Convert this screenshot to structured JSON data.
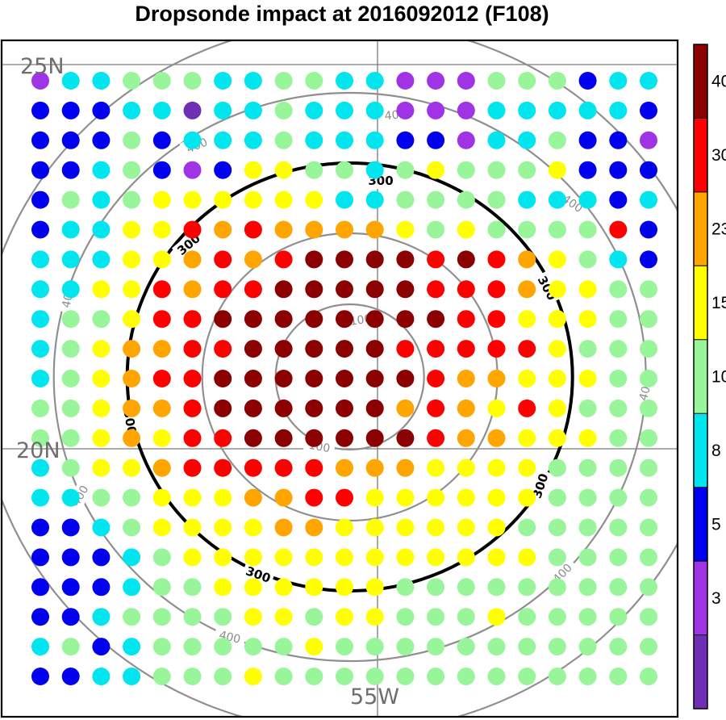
{
  "chart_data": {
    "type": "scatter",
    "title": "Dropsonde impact at 2016092012 (F108)",
    "lat_labels": [
      "25N",
      "20N"
    ],
    "lon_labels": [
      "55W"
    ],
    "range_rings": [
      {
        "label": "100",
        "style": "gray"
      },
      {
        "label": "200",
        "style": "gray"
      },
      {
        "label": "300",
        "style": "black"
      },
      {
        "label": "400",
        "style": "gray"
      }
    ],
    "ring_label_text": {
      "gray100": "100",
      "black300": "300",
      "gray400": "400"
    },
    "colorbar": {
      "ticks": [
        "3",
        "5",
        "8",
        "10",
        "15",
        "23",
        "30",
        "40"
      ],
      "bins": [
        {
          "color": "#6e2fb5"
        },
        {
          "color": "#a033e5"
        },
        {
          "color": "#0000ee"
        },
        {
          "color": "#00e5ee"
        },
        {
          "color": "#99f599"
        },
        {
          "color": "#ffff00"
        },
        {
          "color": "#ffa500"
        },
        {
          "color": "#ff0000"
        },
        {
          "color": "#8b0000"
        }
      ]
    },
    "grid": {
      "rows": 21,
      "cols": 21,
      "levels": [
        "133444334433111444233",
        "222330334333111333332",
        "222423334333221334221",
        "223421255443454445222",
        "243455555533444433323",
        "233557676666545444472",
        "333556767888878765432",
        "335576778888877765544",
        "344577888888887755544",
        "345667788888777775444",
        "345677888888876655544",
        "445667888888676575444",
        "445657788888876655544",
        "345567777766655554444",
        "334455566775555554444",
        "223455556655555544444",
        "222345555555555554444",
        "222344555555444444444",
        "223444455455444544444",
        "342344444544444444444",
        "223344454444444444444"
      ]
    }
  }
}
